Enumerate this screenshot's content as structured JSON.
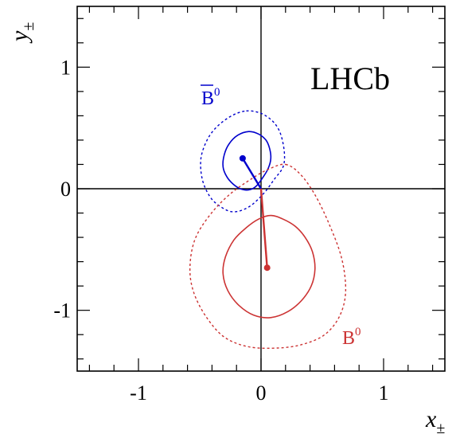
{
  "chart_data": {
    "type": "scatter",
    "title": "",
    "xlabel": "x",
    "xlabel_subscript": "±",
    "ylabel": "y",
    "ylabel_subscript": "±",
    "xlim": [
      -1.5,
      1.5
    ],
    "ylim": [
      -1.5,
      1.5
    ],
    "xticks": [
      -1,
      0,
      1
    ],
    "xtick_labels": [
      "-1",
      "0",
      "1"
    ],
    "yticks": [
      -1,
      0,
      1
    ],
    "ytick_labels": [
      "-1",
      "0",
      "1"
    ],
    "grid": false,
    "experiment_label": "LHCb",
    "origin": [
      0,
      0
    ],
    "series": [
      {
        "name": "B̄⁰",
        "label_base": "B",
        "label_sup": "0",
        "bar": true,
        "color": "#0000cc",
        "point": [
          -0.15,
          0.25
        ],
        "contours": [
          {
            "level": "inner",
            "style": "solid",
            "points": [
              [
                -0.1,
                0.47
              ],
              [
                -0.02,
                0.45
              ],
              [
                0.04,
                0.4
              ],
              [
                0.07,
                0.33
              ],
              [
                0.08,
                0.25
              ],
              [
                0.06,
                0.17
              ],
              [
                0.02,
                0.1
              ],
              [
                -0.04,
                0.02
              ],
              [
                -0.1,
                -0.01
              ],
              [
                -0.17,
                0.0
              ],
              [
                -0.23,
                0.04
              ],
              [
                -0.28,
                0.1
              ],
              [
                -0.31,
                0.18
              ],
              [
                -0.3,
                0.28
              ],
              [
                -0.26,
                0.37
              ],
              [
                -0.19,
                0.44
              ]
            ]
          },
          {
            "level": "outer",
            "style": "dashed",
            "points": [
              [
                -0.12,
                0.64
              ],
              [
                0.0,
                0.62
              ],
              [
                0.1,
                0.55
              ],
              [
                0.16,
                0.45
              ],
              [
                0.19,
                0.3
              ],
              [
                0.18,
                0.18
              ],
              [
                0.11,
                0.08
              ],
              [
                0.02,
                -0.04
              ],
              [
                -0.1,
                -0.15
              ],
              [
                -0.23,
                -0.19
              ],
              [
                -0.34,
                -0.14
              ],
              [
                -0.42,
                -0.06
              ],
              [
                -0.48,
                0.08
              ],
              [
                -0.49,
                0.25
              ],
              [
                -0.44,
                0.4
              ],
              [
                -0.36,
                0.51
              ],
              [
                -0.24,
                0.6
              ]
            ]
          }
        ]
      },
      {
        "name": "B⁰",
        "label_base": "B",
        "label_sup": "0",
        "bar": false,
        "color": "#cc3333",
        "point": [
          0.05,
          -0.65
        ],
        "contours": [
          {
            "level": "inner",
            "style": "solid",
            "points": [
              [
                0.08,
                -0.22
              ],
              [
                0.18,
                -0.25
              ],
              [
                0.28,
                -0.31
              ],
              [
                0.36,
                -0.4
              ],
              [
                0.42,
                -0.52
              ],
              [
                0.44,
                -0.66
              ],
              [
                0.41,
                -0.8
              ],
              [
                0.33,
                -0.92
              ],
              [
                0.22,
                -1.01
              ],
              [
                0.08,
                -1.06
              ],
              [
                -0.06,
                -1.04
              ],
              [
                -0.18,
                -0.96
              ],
              [
                -0.27,
                -0.84
              ],
              [
                -0.31,
                -0.7
              ],
              [
                -0.29,
                -0.56
              ],
              [
                -0.22,
                -0.42
              ],
              [
                -0.12,
                -0.32
              ],
              [
                -0.02,
                -0.25
              ]
            ]
          },
          {
            "level": "outer",
            "style": "dashed",
            "points": [
              [
                0.2,
                0.2
              ],
              [
                0.32,
                0.12
              ],
              [
                0.44,
                -0.05
              ],
              [
                0.56,
                -0.3
              ],
              [
                0.66,
                -0.58
              ],
              [
                0.69,
                -0.85
              ],
              [
                0.64,
                -1.05
              ],
              [
                0.52,
                -1.2
              ],
              [
                0.34,
                -1.28
              ],
              [
                0.14,
                -1.31
              ],
              [
                -0.1,
                -1.3
              ],
              [
                -0.3,
                -1.22
              ],
              [
                -0.45,
                -1.05
              ],
              [
                -0.55,
                -0.85
              ],
              [
                -0.58,
                -0.65
              ],
              [
                -0.54,
                -0.42
              ],
              [
                -0.42,
                -0.22
              ],
              [
                -0.26,
                -0.05
              ],
              [
                -0.08,
                0.08
              ],
              [
                0.06,
                0.16
              ]
            ]
          }
        ]
      }
    ]
  }
}
